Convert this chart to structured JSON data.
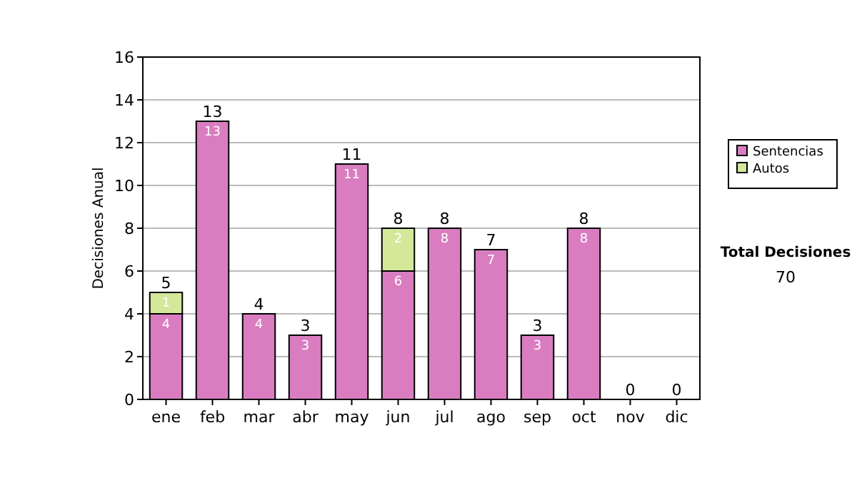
{
  "chart_data": {
    "type": "bar",
    "ylabel": "Decisiones Anual",
    "categories": [
      "ene",
      "feb",
      "mar",
      "abr",
      "may",
      "jun",
      "jul",
      "ago",
      "sep",
      "oct",
      "nov",
      "dic"
    ],
    "series": [
      {
        "name": "Sentencias",
        "color": "#d97dc0",
        "values": [
          4,
          13,
          4,
          3,
          11,
          6,
          8,
          7,
          3,
          8,
          0,
          0
        ],
        "value_labels": [
          "4",
          "13",
          "4",
          "3",
          "11",
          "6",
          "8",
          "7",
          "3",
          "8",
          null,
          null
        ]
      },
      {
        "name": "Autos",
        "color": "#d4e89a",
        "values": [
          1,
          0,
          0,
          0,
          0,
          2,
          0,
          0,
          0,
          0,
          0,
          0
        ],
        "value_labels": [
          "1",
          null,
          null,
          null,
          null,
          "2",
          null,
          null,
          null,
          null,
          null,
          null
        ]
      }
    ],
    "stacked": true,
    "totals": [
      "5",
      "13",
      "4",
      "3",
      "11",
      "8",
      "8",
      "7",
      "3",
      "8",
      "0",
      "0"
    ],
    "ylim": [
      0,
      16
    ],
    "yticks": [
      0,
      2,
      4,
      6,
      8,
      10,
      12,
      14,
      16
    ],
    "grid": "y",
    "legend": "right",
    "annotations": [
      "Total Decisiones",
      "70"
    ]
  }
}
